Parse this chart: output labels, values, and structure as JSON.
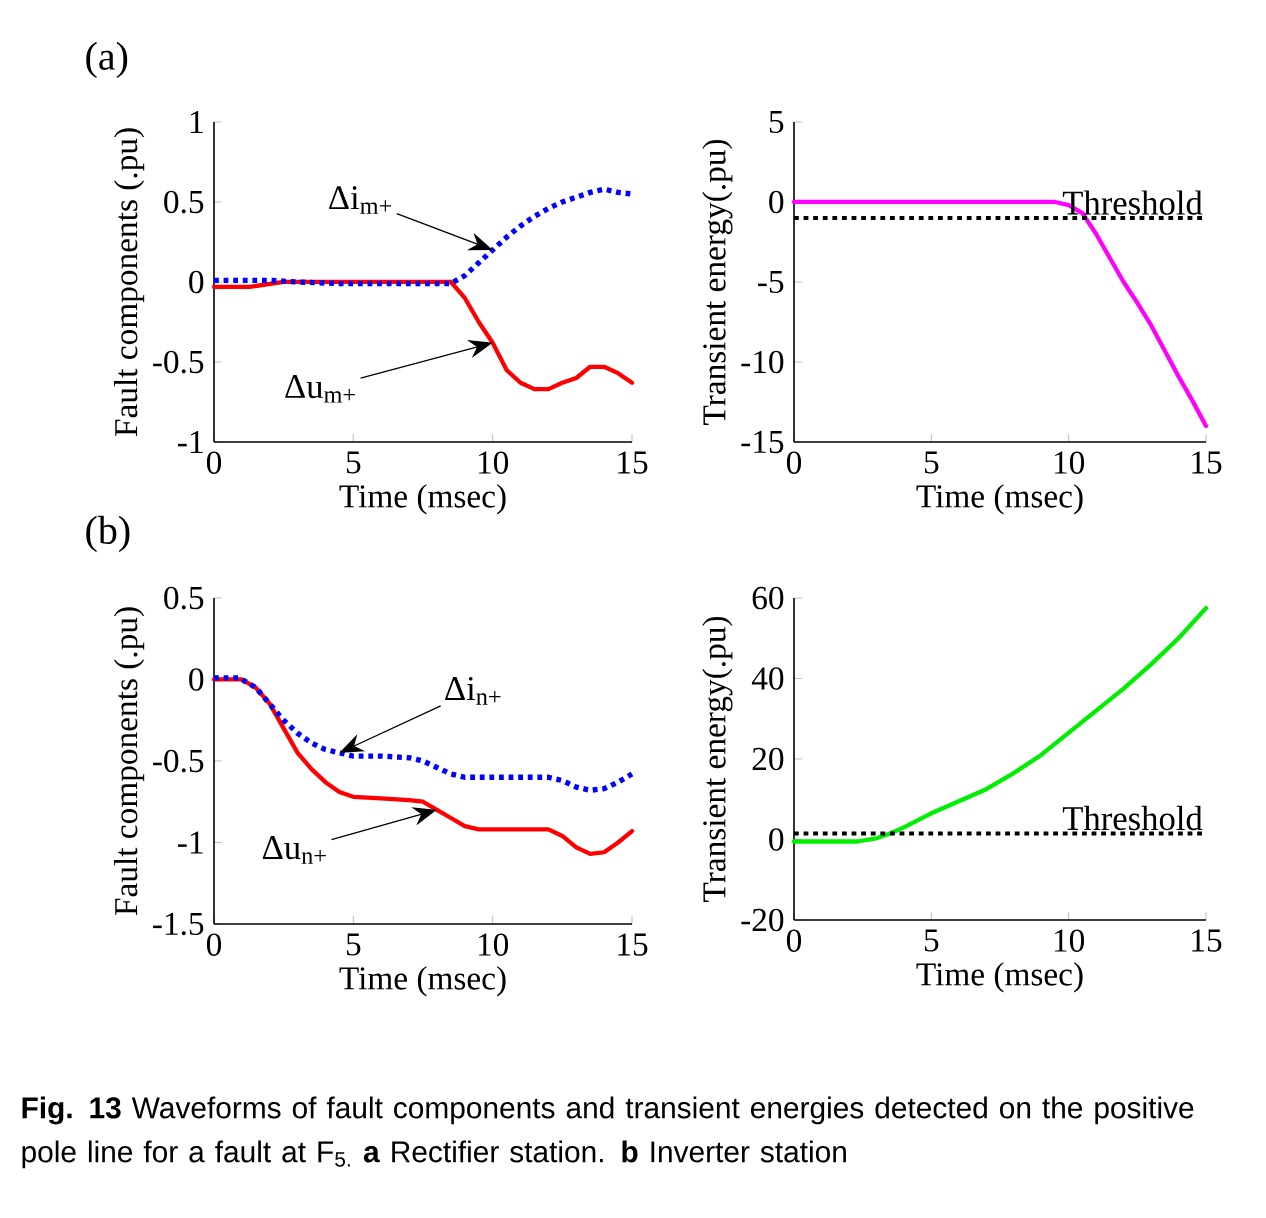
{
  "chart_data": [
    {
      "type": "line",
      "title": "(a)",
      "xlabel": "Time (msec)",
      "ylabel": "Fault components (.pu)",
      "xlim": [
        0,
        15
      ],
      "xticks": [
        0,
        5,
        10,
        15
      ],
      "ylim": [
        -1,
        1
      ],
      "yticks": [
        -1,
        -0.5,
        0,
        0.5,
        1
      ],
      "series": [
        {
          "name": "Δu$_{m+}$",
          "color": "#ff0000",
          "line_style": "solid",
          "x": [
            0,
            1.3,
            2.5,
            8.5,
            9,
            9.5,
            10,
            10.5,
            11,
            11.5,
            12,
            12.5,
            13,
            13.5,
            14,
            14.5,
            15
          ],
          "values": [
            -0.03,
            -0.03,
            0,
            0,
            -0.1,
            -0.25,
            -0.38,
            -0.55,
            -0.63,
            -0.67,
            -0.67,
            -0.63,
            -0.6,
            -0.53,
            -0.53,
            -0.57,
            -0.63
          ]
        },
        {
          "name": "Δi$_{m+}$",
          "color": "#0000ff",
          "line_style": "dotted",
          "x": [
            0,
            2,
            3,
            4.5,
            8.5,
            9,
            9.5,
            10,
            10.5,
            11,
            11.5,
            12,
            12.5,
            13,
            13.5,
            14,
            14.5,
            15
          ],
          "values": [
            0.01,
            0.01,
            0,
            -0.01,
            -0.01,
            0.04,
            0.12,
            0.2,
            0.28,
            0.35,
            0.41,
            0.46,
            0.5,
            0.53,
            0.56,
            0.58,
            0.56,
            0.55
          ]
        }
      ]
    },
    {
      "type": "line",
      "xlabel": "Time (msec)",
      "ylabel": "Transient energy(.pu)",
      "xlim": [
        0,
        15
      ],
      "xticks": [
        0,
        5,
        10,
        15
      ],
      "ylim": [
        -15,
        5
      ],
      "yticks": [
        -15,
        -10,
        -5,
        0,
        5
      ],
      "series": [
        {
          "color": "#ff00ff",
          "line_style": "solid",
          "x": [
            0,
            9.5,
            10,
            10.5,
            11,
            11.5,
            12,
            12.5,
            13,
            13.5,
            14,
            14.5,
            15
          ],
          "values": [
            0,
            0,
            -0.2,
            -0.7,
            -2,
            -3.5,
            -5,
            -6.3,
            -7.7,
            -9.3,
            -10.9,
            -12.4,
            -14
          ]
        }
      ],
      "ref_lines": [
        {
          "axis": "y",
          "value": -1,
          "label": "Threshold",
          "color": "#000000",
          "line_style": "dotted"
        }
      ]
    },
    {
      "type": "line",
      "title": "(b)",
      "xlabel": "Time (msec)",
      "ylabel": "Fault components (.pu)",
      "xlim": [
        0,
        15
      ],
      "xticks": [
        0,
        5,
        10,
        15
      ],
      "ylim": [
        -1.5,
        0.5
      ],
      "yticks": [
        -1.5,
        -1,
        -0.5,
        0,
        0.5
      ],
      "series": [
        {
          "name": "Δu$_{n+}$",
          "color": "#ff0000",
          "line_style": "solid",
          "x": [
            0,
            1,
            1.5,
            2,
            2.5,
            3,
            3.5,
            4,
            4.5,
            5,
            6,
            7,
            7.5,
            8,
            8.5,
            9,
            9.5,
            12,
            12.5,
            13,
            13.5,
            14,
            14.5,
            15
          ],
          "values": [
            0,
            0,
            -0.05,
            -0.15,
            -0.3,
            -0.45,
            -0.55,
            -0.63,
            -0.69,
            -0.72,
            -0.73,
            -0.74,
            -0.75,
            -0.8,
            -0.85,
            -0.9,
            -0.92,
            -0.92,
            -0.96,
            -1.03,
            -1.07,
            -1.06,
            -1.0,
            -0.93
          ]
        },
        {
          "name": "Δi$_{n+}$",
          "color": "#0000ff",
          "line_style": "dotted",
          "x": [
            0,
            0.9,
            1.5,
            2,
            2.5,
            3,
            3.5,
            4,
            4.5,
            5,
            6,
            7,
            7.5,
            8,
            8.5,
            9,
            12,
            12.5,
            13,
            13.5,
            14,
            14.5,
            15
          ],
          "values": [
            0.01,
            0.01,
            -0.05,
            -0.15,
            -0.25,
            -0.33,
            -0.39,
            -0.43,
            -0.45,
            -0.47,
            -0.47,
            -0.48,
            -0.5,
            -0.54,
            -0.58,
            -0.6,
            -0.6,
            -0.62,
            -0.66,
            -0.68,
            -0.67,
            -0.63,
            -0.58
          ]
        }
      ]
    },
    {
      "type": "line",
      "xlabel": "Time (msec)",
      "ylabel": "Transient energy(.pu)",
      "xlim": [
        0,
        15
      ],
      "xticks": [
        0,
        5,
        10,
        15
      ],
      "ylim": [
        -20,
        60
      ],
      "yticks": [
        -20,
        0,
        20,
        40,
        60
      ],
      "series": [
        {
          "color": "#00ee00",
          "line_style": "solid",
          "x": [
            0,
            2.3,
            3,
            3.5,
            4,
            5,
            6,
            7,
            8,
            9,
            10,
            11,
            12,
            13,
            14,
            15
          ],
          "values": [
            -0.5,
            -0.5,
            0.3,
            1.5,
            3,
            6.5,
            9.5,
            12.5,
            16.5,
            21,
            26.5,
            32,
            37.5,
            43.5,
            50,
            57.5
          ]
        }
      ],
      "ref_lines": [
        {
          "axis": "y",
          "value": 1.5,
          "label": "Threshold",
          "color": "#000000",
          "line_style": "dotted"
        }
      ],
      "annotations": [
        "**Fig. 13** Waveforms of fault components and transient energies detected on the positive pole line for a fault at F$_{5.}$ **a** Rectifier station. **b** Inverter station"
      ]
    }
  ]
}
